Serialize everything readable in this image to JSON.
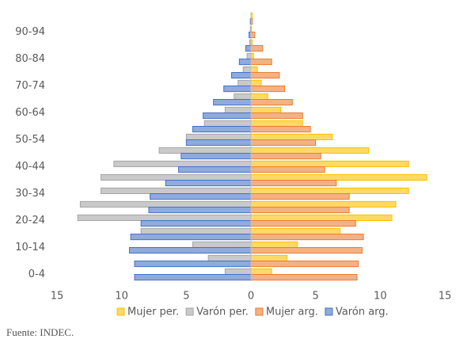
{
  "chart_data": {
    "type": "pyramid",
    "categories": [
      "0-4",
      null,
      "10-14",
      null,
      "20-24",
      null,
      "30-34",
      null,
      "40-44",
      null,
      "50-54",
      null,
      "60-64",
      null,
      "70-74",
      null,
      "80-84",
      null,
      "90-94",
      null
    ],
    "series": [
      {
        "name": "Mujer per.",
        "color": "#ffd966",
        "border": "#ffc000",
        "group": "per",
        "values": [
          1.6,
          2.8,
          3.6,
          6.9,
          10.9,
          11.2,
          12.2,
          13.6,
          12.2,
          9.1,
          6.3,
          4.0,
          2.3,
          1.3,
          0.8,
          0.5,
          0.2,
          0.1,
          0.05,
          0.1
        ]
      },
      {
        "name": "Varón per.",
        "color": "#c9c9c9",
        "border": "#a5a5a5",
        "group": "per",
        "values": [
          -2.0,
          -3.3,
          -4.5,
          -8.5,
          -13.4,
          -13.2,
          -11.6,
          -11.6,
          -10.6,
          -7.1,
          -5.0,
          -3.6,
          -2.0,
          -1.3,
          -1.0,
          -0.6,
          -0.3,
          -0.1,
          -0.05,
          0
        ]
      },
      {
        "name": "Mujer arg.",
        "color": "#f4b183",
        "border": "#ed7d31",
        "group": "arg",
        "values": [
          8.2,
          8.3,
          8.6,
          8.7,
          8.1,
          7.6,
          7.6,
          6.6,
          5.7,
          5.4,
          5.0,
          4.6,
          4.0,
          3.2,
          2.6,
          2.2,
          1.6,
          0.9,
          0.3,
          0.1
        ]
      },
      {
        "name": "Varón arg.",
        "color": "#8faadc",
        "border": "#4472c4",
        "group": "arg",
        "values": [
          -9.0,
          -9.0,
          -9.4,
          -9.3,
          -8.5,
          -7.9,
          -7.8,
          -6.6,
          -5.6,
          -5.4,
          -5.0,
          -4.5,
          -3.7,
          -2.9,
          -2.1,
          -1.5,
          -0.9,
          -0.4,
          -0.15,
          -0.05
        ]
      }
    ],
    "xlim": [
      -15,
      15
    ],
    "xticks": [
      {
        "value": -15,
        "label": "15"
      },
      {
        "value": -10,
        "label": "10"
      },
      {
        "value": -5,
        "label": "5"
      },
      0,
      5,
      10,
      15
    ],
    "source": "Fuente: INDEC."
  }
}
